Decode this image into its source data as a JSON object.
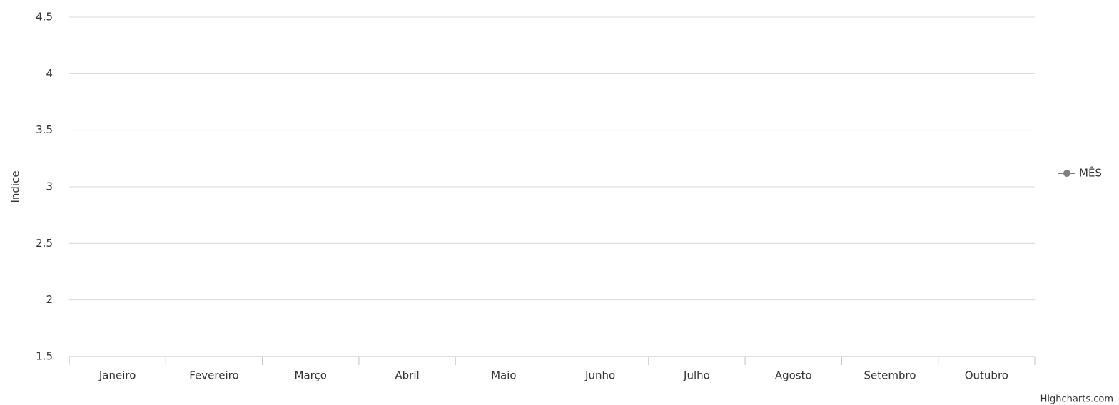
{
  "chart_data": {
    "type": "line",
    "y_label": "Indice",
    "categories": [
      "Janeiro",
      "Fevereiro",
      "Março",
      "Abril",
      "Maio",
      "Junho",
      "Julho",
      "Agosto",
      "Setembro",
      "Outubro"
    ],
    "series": [
      {
        "name": "MÊS",
        "color": "#7f7f7f",
        "values": [
          null,
          null,
          null,
          null,
          null,
          null,
          null,
          null,
          null,
          null
        ]
      }
    ],
    "ylim": [
      1.5,
      4.5
    ],
    "yticks": [
      1.5,
      2,
      2.5,
      3,
      3.5,
      4,
      4.5
    ],
    "grid": true,
    "legend": "right",
    "credits": "Highcharts.com"
  }
}
